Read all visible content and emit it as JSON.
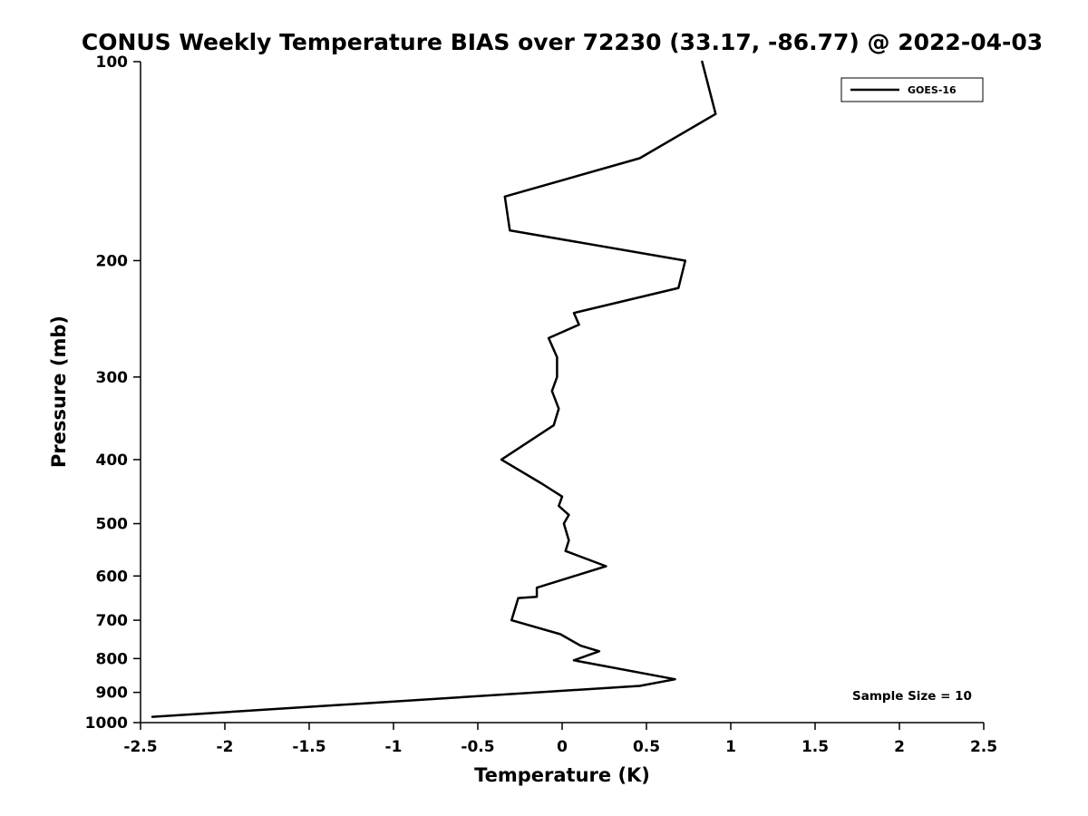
{
  "chart_data": {
    "type": "line",
    "title": "CONUS Weekly Temperature BIAS over 72230 (33.17, -86.77) @ 2022-04-03",
    "xlabel": "Temperature (K)",
    "ylabel": "Pressure (mb)",
    "xlim": [
      -2.5,
      2.5
    ],
    "ylim": [
      100,
      1000
    ],
    "y_scale": "log",
    "y_inverted": true,
    "grid": false,
    "xticks": [
      -2.5,
      -2,
      -1.5,
      -1,
      -0.5,
      0,
      0.5,
      1,
      1.5,
      2,
      2.5
    ],
    "xtick_labels": [
      "-2.5",
      "-2",
      "-1.5",
      "-1",
      "-0.5",
      "0",
      "0.5",
      "1",
      "1.5",
      "2",
      "2.5"
    ],
    "yticks": [
      100,
      200,
      300,
      400,
      500,
      600,
      700,
      800,
      900,
      1000
    ],
    "ytick_labels": [
      "100",
      "200",
      "300",
      "400",
      "500",
      "600",
      "700",
      "800",
      "900",
      "1000"
    ],
    "legend": {
      "position": "top-right",
      "entries": [
        {
          "label": "GOES-16",
          "color": "#000000",
          "line_width": 2.5
        }
      ]
    },
    "annotation": "Sample Size = 10",
    "series": [
      {
        "name": "GOES-16",
        "color": "#000000",
        "pressure_mb": [
          100,
          120,
          140,
          160,
          180,
          200,
          220,
          240,
          250,
          262,
          280,
          300,
          315,
          335,
          355,
          400,
          435,
          455,
          470,
          485,
          500,
          530,
          550,
          580,
          625,
          645,
          648,
          700,
          735,
          765,
          780,
          805,
          860,
          880,
          980
        ],
        "bias_k": [
          0.83,
          0.91,
          0.46,
          -0.34,
          -0.31,
          0.73,
          0.69,
          0.07,
          0.1,
          -0.08,
          -0.03,
          -0.03,
          -0.06,
          -0.02,
          -0.05,
          -0.36,
          -0.12,
          0.0,
          -0.02,
          0.04,
          0.01,
          0.04,
          0.02,
          0.26,
          -0.15,
          -0.15,
          -0.26,
          -0.3,
          -0.01,
          0.11,
          0.22,
          0.07,
          0.67,
          0.46,
          -2.43
        ]
      }
    ]
  }
}
